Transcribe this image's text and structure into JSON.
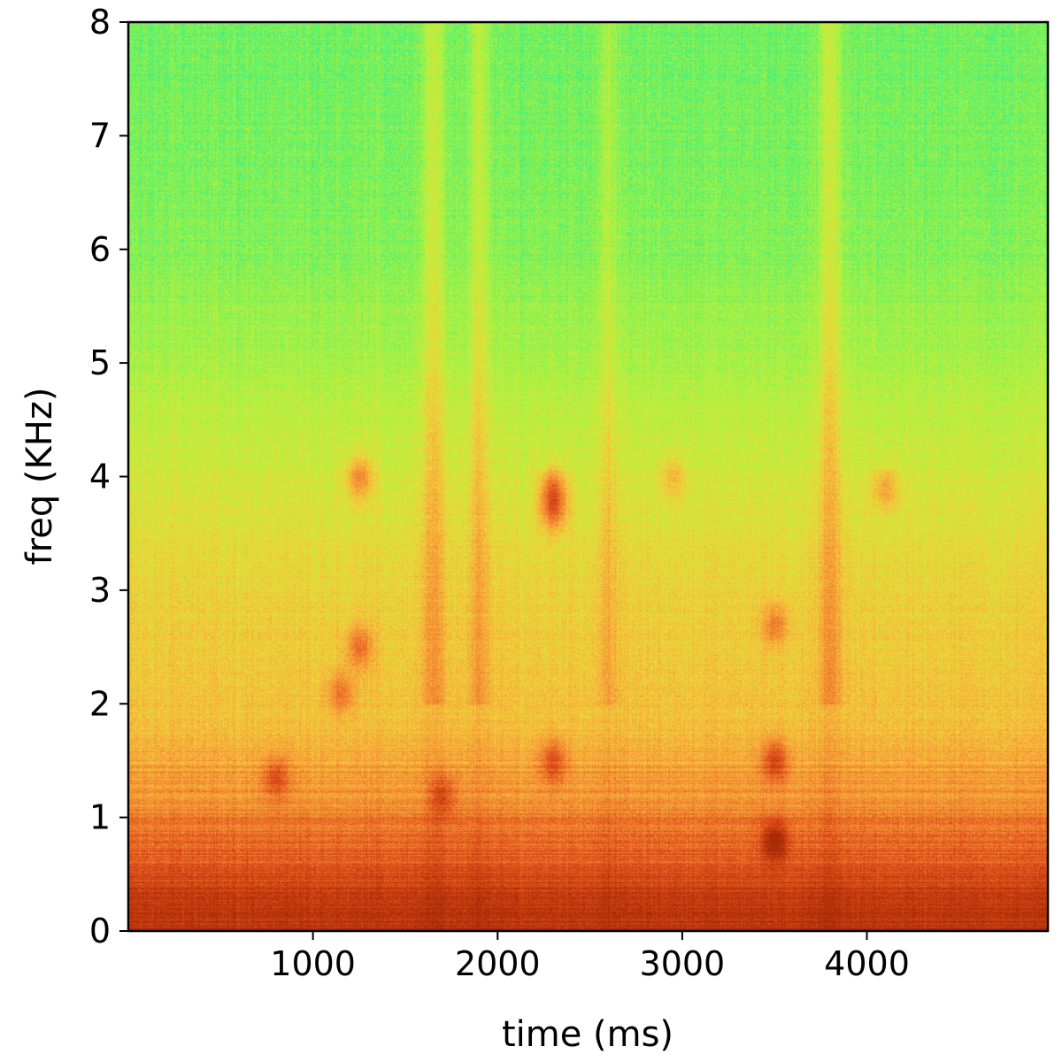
{
  "chart_data": {
    "type": "heatmap",
    "title": "",
    "xlabel": "time (ms)",
    "ylabel": "freq (KHz)",
    "xlim": [
      0,
      4980
    ],
    "ylim": [
      0,
      8
    ],
    "x_ticks": [
      1000,
      2000,
      3000,
      4000
    ],
    "y_ticks": [
      0,
      1,
      2,
      3,
      4,
      5,
      6,
      7,
      8
    ],
    "grid": false,
    "legend": "none",
    "colormap": [
      "#1be0a8",
      "#45ee7c",
      "#96f24a",
      "#c8ee3c",
      "#f0d23a",
      "#f7a83a",
      "#f08230",
      "#e2561e",
      "#c83c0e",
      "#a52a08"
    ],
    "intensity_profile_by_freq": [
      {
        "freq": 0.0,
        "level": 0.95
      },
      {
        "freq": 0.3,
        "level": 0.9
      },
      {
        "freq": 0.7,
        "level": 0.75
      },
      {
        "freq": 1.2,
        "level": 0.62
      },
      {
        "freq": 1.8,
        "level": 0.5
      },
      {
        "freq": 3.0,
        "level": 0.44
      },
      {
        "freq": 4.0,
        "level": 0.36
      },
      {
        "freq": 5.0,
        "level": 0.27
      },
      {
        "freq": 6.0,
        "level": 0.2
      },
      {
        "freq": 8.0,
        "level": 0.17
      }
    ],
    "vertical_bands": [
      {
        "time": 1650,
        "width": 60,
        "level": 0.15
      },
      {
        "time": 1900,
        "width": 50,
        "level": 0.14
      },
      {
        "time": 2600,
        "width": 50,
        "level": 0.1
      },
      {
        "time": 3800,
        "width": 60,
        "level": 0.16
      }
    ],
    "hotspots": [
      {
        "time": 1250,
        "freq": 4.0,
        "level": 0.28
      },
      {
        "time": 1250,
        "freq": 2.5,
        "level": 0.25
      },
      {
        "time": 1150,
        "freq": 2.1,
        "level": 0.22
      },
      {
        "time": 2300,
        "freq": 3.9,
        "level": 0.32
      },
      {
        "time": 2300,
        "freq": 3.7,
        "level": 0.3
      },
      {
        "time": 2300,
        "freq": 1.5,
        "level": 0.25
      },
      {
        "time": 3500,
        "freq": 2.7,
        "level": 0.22
      },
      {
        "time": 3500,
        "freq": 1.5,
        "level": 0.3
      },
      {
        "time": 3500,
        "freq": 0.8,
        "level": 0.32
      },
      {
        "time": 800,
        "freq": 1.35,
        "level": 0.22
      },
      {
        "time": 4100,
        "freq": 3.9,
        "level": 0.2
      },
      {
        "time": 2950,
        "freq": 4.0,
        "level": 0.15
      },
      {
        "time": 1700,
        "freq": 1.2,
        "level": 0.2
      }
    ]
  }
}
